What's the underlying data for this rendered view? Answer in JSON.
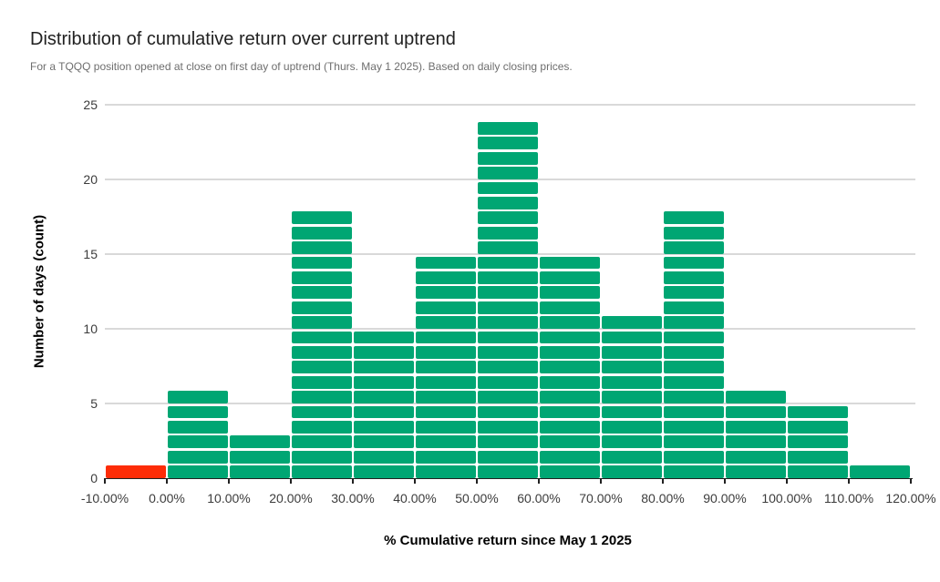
{
  "chart_data": {
    "type": "bar",
    "subtype": "histogram",
    "title": "Distribution of cumulative return over current uptrend",
    "subtitle": "For a TQQQ position opened at close on first day of uptrend (Thurs. May 1 2025). Based on daily closing prices.",
    "xlabel": "% Cumulative return since May 1 2025",
    "ylabel": "Number of days (count)",
    "bins": [
      {
        "from_pct": -10,
        "to_pct": 0,
        "count": 1,
        "color": "#fd2c07"
      },
      {
        "from_pct": 0,
        "to_pct": 10,
        "count": 6,
        "color": "#00a673"
      },
      {
        "from_pct": 10,
        "to_pct": 20,
        "count": 3,
        "color": "#00a673"
      },
      {
        "from_pct": 20,
        "to_pct": 30,
        "count": 18,
        "color": "#00a673"
      },
      {
        "from_pct": 30,
        "to_pct": 40,
        "count": 10,
        "color": "#00a673"
      },
      {
        "from_pct": 40,
        "to_pct": 50,
        "count": 15,
        "color": "#00a673"
      },
      {
        "from_pct": 50,
        "to_pct": 60,
        "count": 24,
        "color": "#00a673"
      },
      {
        "from_pct": 60,
        "to_pct": 70,
        "count": 15,
        "color": "#00a673"
      },
      {
        "from_pct": 70,
        "to_pct": 80,
        "count": 11,
        "color": "#00a673"
      },
      {
        "from_pct": 80,
        "to_pct": 90,
        "count": 18,
        "color": "#00a673"
      },
      {
        "from_pct": 90,
        "to_pct": 100,
        "count": 6,
        "color": "#00a673"
      },
      {
        "from_pct": 100,
        "to_pct": 110,
        "count": 5,
        "color": "#00a673"
      },
      {
        "from_pct": 110,
        "to_pct": 120,
        "count": 1,
        "color": "#00a673"
      }
    ],
    "x_tick_labels": [
      "-10.00%",
      "0.00%",
      "10.00%",
      "20.00%",
      "30.00%",
      "40.00%",
      "50.00%",
      "60.00%",
      "70.00%",
      "80.00%",
      "90.00%",
      "100.00%",
      "110.00%",
      "120.00%"
    ],
    "y_ticks": [
      0,
      5,
      10,
      15,
      20,
      25
    ],
    "ylim": [
      0,
      25
    ],
    "grid": true,
    "item_dividers": true,
    "legend_position": "none",
    "colors": {
      "uptrend_green": "#00a673",
      "loss_red": "#fd2c07",
      "gridline": "#d9d9d9",
      "axis": "#212121",
      "title_text": "#212121",
      "subtitle_text": "#6e6e6e",
      "tick_text": "#3c3c3c"
    }
  }
}
